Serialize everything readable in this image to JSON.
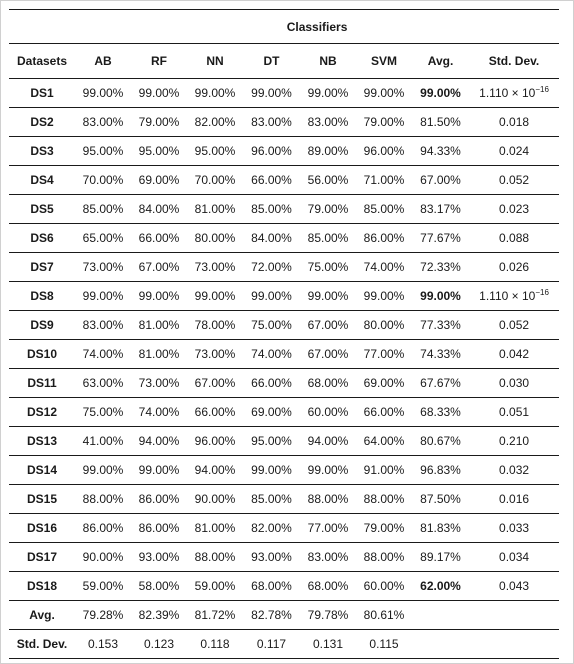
{
  "table": {
    "group_header": "Classifiers",
    "columns": [
      "Datasets",
      "AB",
      "RF",
      "NN",
      "DT",
      "NB",
      "SVM",
      "Avg.",
      "Std. Dev."
    ],
    "rows": [
      {
        "dataset": "DS1",
        "ab": "99.00%",
        "rf": "99.00%",
        "nn": "99.00%",
        "dt": "99.00%",
        "nb": "99.00%",
        "svm": "99.00%",
        "avg": "99.00%",
        "avg_bold": true,
        "std": "1.110 × 10",
        "std_exp": "−16"
      },
      {
        "dataset": "DS2",
        "ab": "83.00%",
        "rf": "79.00%",
        "nn": "82.00%",
        "dt": "83.00%",
        "nb": "83.00%",
        "svm": "79.00%",
        "avg": "81.50%",
        "avg_bold": false,
        "std": "0.018",
        "std_exp": ""
      },
      {
        "dataset": "DS3",
        "ab": "95.00%",
        "rf": "95.00%",
        "nn": "95.00%",
        "dt": "96.00%",
        "nb": "89.00%",
        "svm": "96.00%",
        "avg": "94.33%",
        "avg_bold": false,
        "std": "0.024",
        "std_exp": ""
      },
      {
        "dataset": "DS4",
        "ab": "70.00%",
        "rf": "69.00%",
        "nn": "70.00%",
        "dt": "66.00%",
        "nb": "56.00%",
        "svm": "71.00%",
        "avg": "67.00%",
        "avg_bold": false,
        "std": "0.052",
        "std_exp": ""
      },
      {
        "dataset": "DS5",
        "ab": "85.00%",
        "rf": "84.00%",
        "nn": "81.00%",
        "dt": "85.00%",
        "nb": "79.00%",
        "svm": "85.00%",
        "avg": "83.17%",
        "avg_bold": false,
        "std": "0.023",
        "std_exp": ""
      },
      {
        "dataset": "DS6",
        "ab": "65.00%",
        "rf": "66.00%",
        "nn": "80.00%",
        "dt": "84.00%",
        "nb": "85.00%",
        "svm": "86.00%",
        "avg": "77.67%",
        "avg_bold": false,
        "std": "0.088",
        "std_exp": ""
      },
      {
        "dataset": "DS7",
        "ab": "73.00%",
        "rf": "67.00%",
        "nn": "73.00%",
        "dt": "72.00%",
        "nb": "75.00%",
        "svm": "74.00%",
        "avg": "72.33%",
        "avg_bold": false,
        "std": "0.026",
        "std_exp": ""
      },
      {
        "dataset": "DS8",
        "ab": "99.00%",
        "rf": "99.00%",
        "nn": "99.00%",
        "dt": "99.00%",
        "nb": "99.00%",
        "svm": "99.00%",
        "avg": "99.00%",
        "avg_bold": true,
        "std": "1.110 × 10",
        "std_exp": "−16"
      },
      {
        "dataset": "DS9",
        "ab": "83.00%",
        "rf": "81.00%",
        "nn": "78.00%",
        "dt": "75.00%",
        "nb": "67.00%",
        "svm": "80.00%",
        "avg": "77.33%",
        "avg_bold": false,
        "std": "0.052",
        "std_exp": ""
      },
      {
        "dataset": "DS10",
        "ab": "74.00%",
        "rf": "81.00%",
        "nn": "73.00%",
        "dt": "74.00%",
        "nb": "67.00%",
        "svm": "77.00%",
        "avg": "74.33%",
        "avg_bold": false,
        "std": "0.042",
        "std_exp": ""
      },
      {
        "dataset": "DS11",
        "ab": "63.00%",
        "rf": "73.00%",
        "nn": "67.00%",
        "dt": "66.00%",
        "nb": "68.00%",
        "svm": "69.00%",
        "avg": "67.67%",
        "avg_bold": false,
        "std": "0.030",
        "std_exp": ""
      },
      {
        "dataset": "DS12",
        "ab": "75.00%",
        "rf": "74.00%",
        "nn": "66.00%",
        "dt": "69.00%",
        "nb": "60.00%",
        "svm": "66.00%",
        "avg": "68.33%",
        "avg_bold": false,
        "std": "0.051",
        "std_exp": ""
      },
      {
        "dataset": "DS13",
        "ab": "41.00%",
        "rf": "94.00%",
        "nn": "96.00%",
        "dt": "95.00%",
        "nb": "94.00%",
        "svm": "64.00%",
        "avg": "80.67%",
        "avg_bold": false,
        "std": "0.210",
        "std_exp": ""
      },
      {
        "dataset": "DS14",
        "ab": "99.00%",
        "rf": "99.00%",
        "nn": "94.00%",
        "dt": "99.00%",
        "nb": "99.00%",
        "svm": "91.00%",
        "avg": "96.83%",
        "avg_bold": false,
        "std": "0.032",
        "std_exp": ""
      },
      {
        "dataset": "DS15",
        "ab": "88.00%",
        "rf": "86.00%",
        "nn": "90.00%",
        "dt": "85.00%",
        "nb": "88.00%",
        "svm": "88.00%",
        "avg": "87.50%",
        "avg_bold": false,
        "std": "0.016",
        "std_exp": ""
      },
      {
        "dataset": "DS16",
        "ab": "86.00%",
        "rf": "86.00%",
        "nn": "81.00%",
        "dt": "82.00%",
        "nb": "77.00%",
        "svm": "79.00%",
        "avg": "81.83%",
        "avg_bold": false,
        "std": "0.033",
        "std_exp": ""
      },
      {
        "dataset": "DS17",
        "ab": "90.00%",
        "rf": "93.00%",
        "nn": "88.00%",
        "dt": "93.00%",
        "nb": "83.00%",
        "svm": "88.00%",
        "avg": "89.17%",
        "avg_bold": false,
        "std": "0.034",
        "std_exp": ""
      },
      {
        "dataset": "DS18",
        "ab": "59.00%",
        "rf": "58.00%",
        "nn": "59.00%",
        "dt": "68.00%",
        "nb": "68.00%",
        "svm": "60.00%",
        "avg": "62.00%",
        "avg_bold": true,
        "std": "0.043",
        "std_exp": ""
      }
    ],
    "summary": [
      {
        "label": "Avg.",
        "ab": "79.28%",
        "rf": "82.39%",
        "nn": "81.72%",
        "dt": "82.78%",
        "nb": "79.78%",
        "svm": "80.61%"
      },
      {
        "label": "Std. Dev.",
        "ab": "0.153",
        "rf": "0.123",
        "nn": "0.118",
        "dt": "0.117",
        "nb": "0.131",
        "svm": "0.115"
      }
    ]
  }
}
